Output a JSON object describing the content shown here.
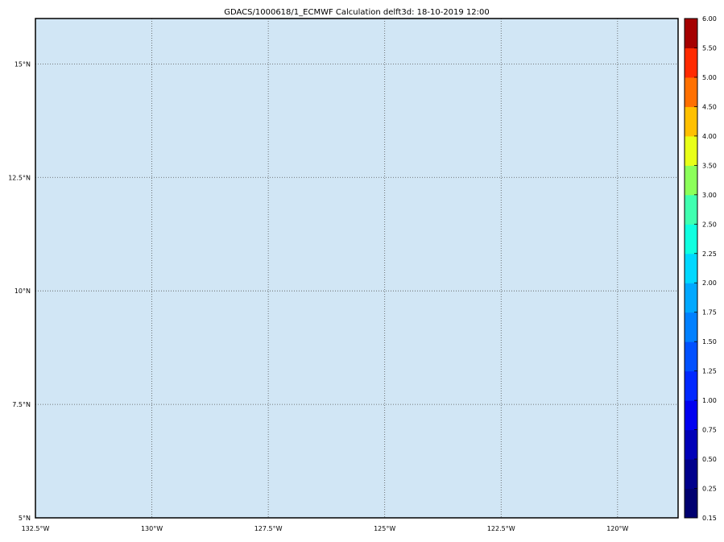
{
  "title": "GDACS/1000618/1_ECMWF Calculation delft3d: 18-10-2019 12:00",
  "map": {
    "ocean_color": "#d1e6f5",
    "lon_range": [
      -132.5,
      -118.7
    ],
    "lat_range": [
      5,
      16
    ],
    "grid": "dotted",
    "lon_ticks": [
      {
        "value": -132.5,
        "label": "132.5°W"
      },
      {
        "value": -130,
        "label": "130°W"
      },
      {
        "value": -127.5,
        "label": "127.5°W"
      },
      {
        "value": -125,
        "label": "125°W"
      },
      {
        "value": -122.5,
        "label": "122.5°W"
      },
      {
        "value": -120,
        "label": "120°W"
      }
    ],
    "lat_ticks": [
      {
        "value": 5,
        "label": "5°N"
      },
      {
        "value": 7.5,
        "label": "7.5°N"
      },
      {
        "value": 10,
        "label": "10°N"
      },
      {
        "value": 12.5,
        "label": "12.5°N"
      },
      {
        "value": 15,
        "label": "15°N"
      }
    ]
  },
  "colorbar": {
    "labels": [
      "0.15",
      "0.25",
      "0.50",
      "0.75",
      "1.00",
      "1.25",
      "1.50",
      "1.75",
      "2.00",
      "2.25",
      "2.50",
      "3.00",
      "3.50",
      "4.00",
      "4.50",
      "5.00",
      "5.50",
      "6.00"
    ],
    "colors": [
      "#000070",
      "#00008c",
      "#0000b8",
      "#0000f0",
      "#0028ff",
      "#0050ff",
      "#0080ff",
      "#00a8ff",
      "#00d8ff",
      "#10ffe0",
      "#40ffb0",
      "#8cff5a",
      "#e8ff18",
      "#ffc000",
      "#ff7000",
      "#ff2a00",
      "#a50000"
    ]
  }
}
